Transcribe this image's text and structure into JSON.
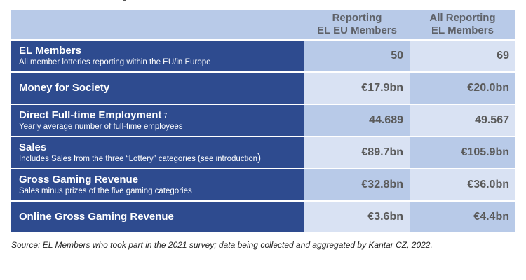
{
  "header": {
    "col1_line1": "Reporting",
    "col1_line2": "EL EU Members",
    "col2_line1": "All Reporting",
    "col2_line2": "EL Members"
  },
  "rows": [
    {
      "title": "EL Members",
      "subtitle": "All member lotteries reporting within the EU/in Europe",
      "eu": "50",
      "all": "69"
    },
    {
      "title": "Money for Society",
      "subtitle": "",
      "eu": "€17.9bn",
      "all": "€20.0bn"
    },
    {
      "title": "Direct Full-time Employment",
      "footnote": "7",
      "subtitle": "Yearly average number of full-time employees",
      "eu": "44.689",
      "all": "49.567"
    },
    {
      "title": "Sales",
      "subtitle": "Includes Sales from the three “Lottery” categories (see introduction",
      "subtitle_close": ")",
      "eu": "€89.7bn",
      "all": "€105.9bn"
    },
    {
      "title": "Gross Gaming Revenue",
      "subtitle": "Sales minus prizes of the five gaming categories",
      "eu": "€32.8bn",
      "all": "€36.0bn"
    },
    {
      "title": "Online Gross Gaming Revenue",
      "subtitle": "",
      "eu": "€3.6bn",
      "all": "€4.4bn"
    }
  ],
  "source": "Source: EL Members who took part in the 2021 survey; data being collected and aggregated by Kantar CZ, 2022."
}
